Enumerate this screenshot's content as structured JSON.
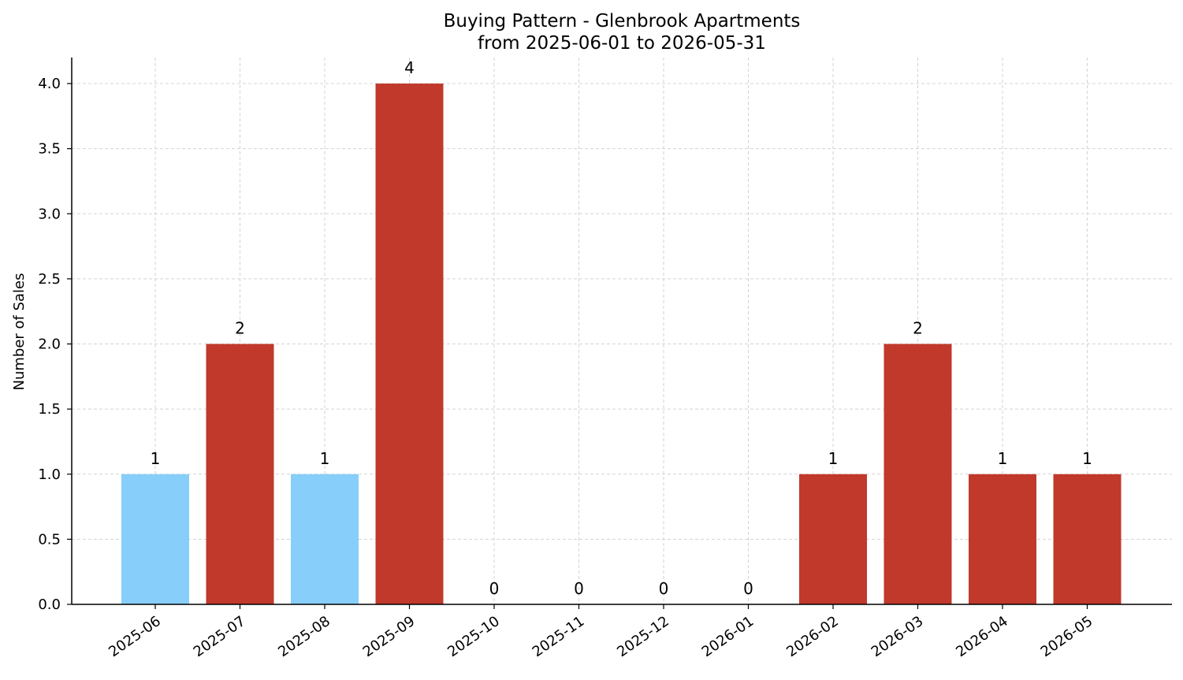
{
  "chart_data": {
    "type": "bar",
    "title": "Buying Pattern - Glenbrook Apartments",
    "subtitle": "from 2025-06-01 to 2026-05-31",
    "xlabel": "",
    "ylabel": "Number of Sales",
    "categories": [
      "2025-06",
      "2025-07",
      "2025-08",
      "2025-09",
      "2025-10",
      "2025-11",
      "2025-12",
      "2026-01",
      "2026-02",
      "2026-03",
      "2026-04",
      "2026-05"
    ],
    "values": [
      1,
      2,
      1,
      4,
      0,
      0,
      0,
      0,
      1,
      2,
      1,
      1
    ],
    "bar_colors": [
      "#87cefa",
      "#c0392b",
      "#87cefa",
      "#c0392b",
      "#c0392b",
      "#c0392b",
      "#c0392b",
      "#c0392b",
      "#c0392b",
      "#c0392b",
      "#c0392b",
      "#c0392b"
    ],
    "data_labels": [
      "1",
      "2",
      "1",
      "4",
      "0",
      "0",
      "0",
      "0",
      "1",
      "2",
      "1",
      "1"
    ],
    "ylim": [
      0,
      4.2
    ],
    "yticks": [
      0.0,
      0.5,
      1.0,
      1.5,
      2.0,
      2.5,
      3.0,
      3.5,
      4.0
    ],
    "ytick_labels": [
      "0.0",
      "0.5",
      "1.0",
      "1.5",
      "2.0",
      "2.5",
      "3.0",
      "3.5",
      "4.0"
    ],
    "grid": true,
    "legend": "none"
  }
}
